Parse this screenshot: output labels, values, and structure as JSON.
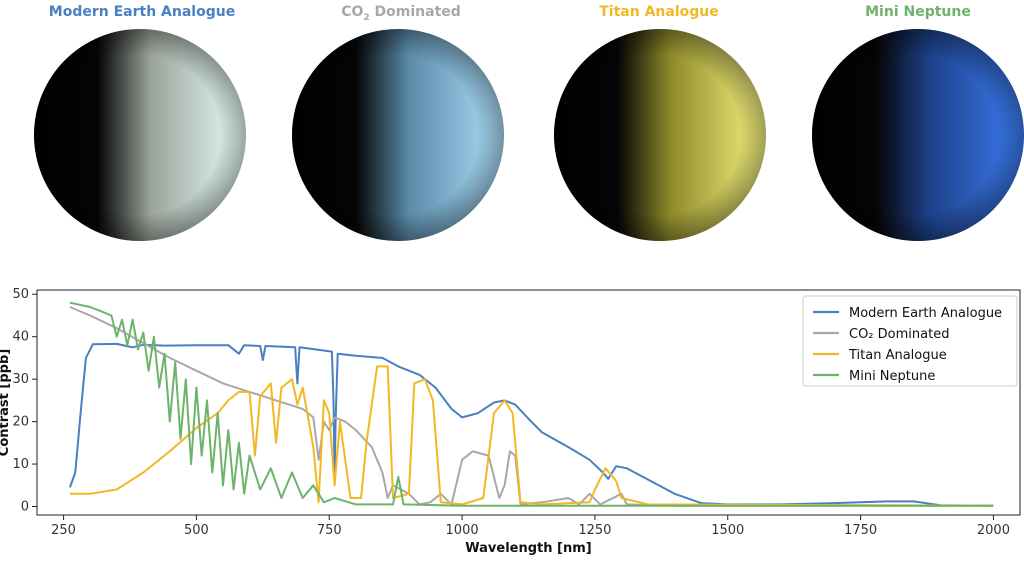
{
  "planets": [
    {
      "title": "Modern Earth Analogue",
      "color": "#4a7fc1",
      "base": "#e8fffc",
      "mid": "#9aa39a"
    },
    {
      "title_main": "CO",
      "title_sub": "2",
      "title_rest": " Dominated",
      "color": "#a8a8a8",
      "base": "#aee0fb",
      "mid": "#5a8aa8"
    },
    {
      "title": "Titan Analogue",
      "color": "#f2b824",
      "base": "#f8f582",
      "mid": "#8e8a2a"
    },
    {
      "title": "Mini Neptune",
      "color": "#6db36a",
      "base": "#3d7ff7",
      "mid": "#1d3f86"
    }
  ],
  "chart_data": {
    "type": "line",
    "xlabel": "Wavelength [nm]",
    "ylabel": "Contrast [ppb]",
    "xlim": [
      200,
      2050
    ],
    "ylim": [
      -2,
      51
    ],
    "xticks": [
      250,
      500,
      750,
      1000,
      1250,
      1500,
      1750,
      2000
    ],
    "yticks": [
      0,
      10,
      20,
      30,
      40,
      50
    ],
    "grid": false,
    "legend_position": "top-right",
    "series": [
      {
        "name": "Modern Earth Analogue",
        "color": "#4a7fc1",
        "points": [
          [
            262,
            4.5
          ],
          [
            272,
            8
          ],
          [
            282,
            22
          ],
          [
            292,
            35
          ],
          [
            305,
            38.2
          ],
          [
            350,
            38.3
          ],
          [
            380,
            37.5
          ],
          [
            400,
            38.1
          ],
          [
            440,
            37.9
          ],
          [
            500,
            38
          ],
          [
            560,
            38
          ],
          [
            580,
            36
          ],
          [
            590,
            38
          ],
          [
            620,
            37.8
          ],
          [
            625,
            34.5
          ],
          [
            630,
            37.8
          ],
          [
            686,
            37.5
          ],
          [
            688,
            33
          ],
          [
            690,
            29
          ],
          [
            694,
            37.5
          ],
          [
            755,
            36.5
          ],
          [
            758,
            25
          ],
          [
            760,
            7
          ],
          [
            762,
            20
          ],
          [
            766,
            36
          ],
          [
            800,
            35.5
          ],
          [
            850,
            35
          ],
          [
            880,
            33
          ],
          [
            920,
            31
          ],
          [
            950,
            28
          ],
          [
            980,
            23
          ],
          [
            1000,
            21
          ],
          [
            1030,
            22
          ],
          [
            1060,
            24.5
          ],
          [
            1080,
            25
          ],
          [
            1100,
            24
          ],
          [
            1130,
            20
          ],
          [
            1150,
            17.5
          ],
          [
            1200,
            14
          ],
          [
            1240,
            11
          ],
          [
            1265,
            8
          ],
          [
            1275,
            6.5
          ],
          [
            1290,
            9.5
          ],
          [
            1310,
            9
          ],
          [
            1340,
            7
          ],
          [
            1370,
            5
          ],
          [
            1400,
            3
          ],
          [
            1450,
            0.8
          ],
          [
            1500,
            0.5
          ],
          [
            1600,
            0.5
          ],
          [
            1700,
            0.8
          ],
          [
            1800,
            1.2
          ],
          [
            1850,
            1.2
          ],
          [
            1900,
            0.3
          ],
          [
            2000,
            0.2
          ]
        ]
      },
      {
        "name": "CO₂ Dominated",
        "color": "#a8a8a8",
        "points": [
          [
            262,
            47
          ],
          [
            300,
            45
          ],
          [
            350,
            42
          ],
          [
            400,
            38.5
          ],
          [
            450,
            35
          ],
          [
            500,
            32
          ],
          [
            550,
            29
          ],
          [
            600,
            27
          ],
          [
            650,
            25
          ],
          [
            700,
            23
          ],
          [
            720,
            21
          ],
          [
            730,
            11
          ],
          [
            740,
            20
          ],
          [
            750,
            18
          ],
          [
            760,
            21
          ],
          [
            780,
            20
          ],
          [
            800,
            18
          ],
          [
            830,
            14
          ],
          [
            850,
            8
          ],
          [
            860,
            2
          ],
          [
            870,
            5
          ],
          [
            900,
            3
          ],
          [
            920,
            0.5
          ],
          [
            940,
            1
          ],
          [
            960,
            3
          ],
          [
            980,
            0.5
          ],
          [
            1000,
            11
          ],
          [
            1020,
            13
          ],
          [
            1050,
            12
          ],
          [
            1070,
            2
          ],
          [
            1080,
            5
          ],
          [
            1090,
            13
          ],
          [
            1100,
            12
          ],
          [
            1110,
            0.5
          ],
          [
            1150,
            1
          ],
          [
            1200,
            2
          ],
          [
            1220,
            0.5
          ],
          [
            1240,
            3
          ],
          [
            1260,
            0.5
          ],
          [
            1300,
            3
          ],
          [
            1310,
            0.5
          ],
          [
            1400,
            0.2
          ],
          [
            2000,
            0.2
          ]
        ]
      },
      {
        "name": "Titan Analogue",
        "color": "#f2b824",
        "points": [
          [
            262,
            3
          ],
          [
            300,
            3
          ],
          [
            350,
            4
          ],
          [
            400,
            8
          ],
          [
            450,
            13
          ],
          [
            500,
            18.5
          ],
          [
            540,
            22
          ],
          [
            560,
            25
          ],
          [
            580,
            27
          ],
          [
            600,
            27
          ],
          [
            610,
            12
          ],
          [
            620,
            26
          ],
          [
            640,
            29
          ],
          [
            650,
            15
          ],
          [
            660,
            28
          ],
          [
            680,
            30
          ],
          [
            690,
            24
          ],
          [
            700,
            28
          ],
          [
            720,
            14
          ],
          [
            730,
            1
          ],
          [
            740,
            25
          ],
          [
            750,
            22
          ],
          [
            760,
            5
          ],
          [
            770,
            20
          ],
          [
            790,
            2
          ],
          [
            810,
            2
          ],
          [
            820,
            15
          ],
          [
            840,
            33
          ],
          [
            860,
            33
          ],
          [
            870,
            2
          ],
          [
            900,
            3
          ],
          [
            910,
            29
          ],
          [
            930,
            30
          ],
          [
            945,
            25
          ],
          [
            960,
            1
          ],
          [
            1000,
            0.5
          ],
          [
            1040,
            2
          ],
          [
            1060,
            22
          ],
          [
            1080,
            25
          ],
          [
            1095,
            22
          ],
          [
            1110,
            1
          ],
          [
            1150,
            0.5
          ],
          [
            1240,
            1
          ],
          [
            1250,
            4
          ],
          [
            1270,
            9
          ],
          [
            1290,
            6
          ],
          [
            1300,
            2
          ],
          [
            1350,
            0.5
          ],
          [
            2000,
            0.2
          ]
        ]
      },
      {
        "name": "Mini Neptune",
        "color": "#6db36a",
        "points": [
          [
            262,
            48
          ],
          [
            300,
            47
          ],
          [
            320,
            46
          ],
          [
            340,
            45
          ],
          [
            350,
            40
          ],
          [
            360,
            44
          ],
          [
            370,
            38
          ],
          [
            380,
            44
          ],
          [
            390,
            37
          ],
          [
            400,
            41
          ],
          [
            410,
            32
          ],
          [
            420,
            40
          ],
          [
            430,
            28
          ],
          [
            440,
            36
          ],
          [
            450,
            20
          ],
          [
            460,
            34
          ],
          [
            470,
            16
          ],
          [
            480,
            30
          ],
          [
            490,
            10
          ],
          [
            500,
            28
          ],
          [
            510,
            12
          ],
          [
            520,
            25
          ],
          [
            530,
            8
          ],
          [
            540,
            22
          ],
          [
            550,
            5
          ],
          [
            560,
            18
          ],
          [
            570,
            4
          ],
          [
            580,
            15
          ],
          [
            590,
            3
          ],
          [
            600,
            12
          ],
          [
            620,
            4
          ],
          [
            640,
            9
          ],
          [
            660,
            2
          ],
          [
            680,
            8
          ],
          [
            700,
            2
          ],
          [
            720,
            5
          ],
          [
            740,
            1
          ],
          [
            760,
            2
          ],
          [
            800,
            0.5
          ],
          [
            870,
            0.5
          ],
          [
            880,
            7
          ],
          [
            890,
            0.5
          ],
          [
            1000,
            0.2
          ],
          [
            2000,
            0.2
          ]
        ]
      }
    ]
  }
}
